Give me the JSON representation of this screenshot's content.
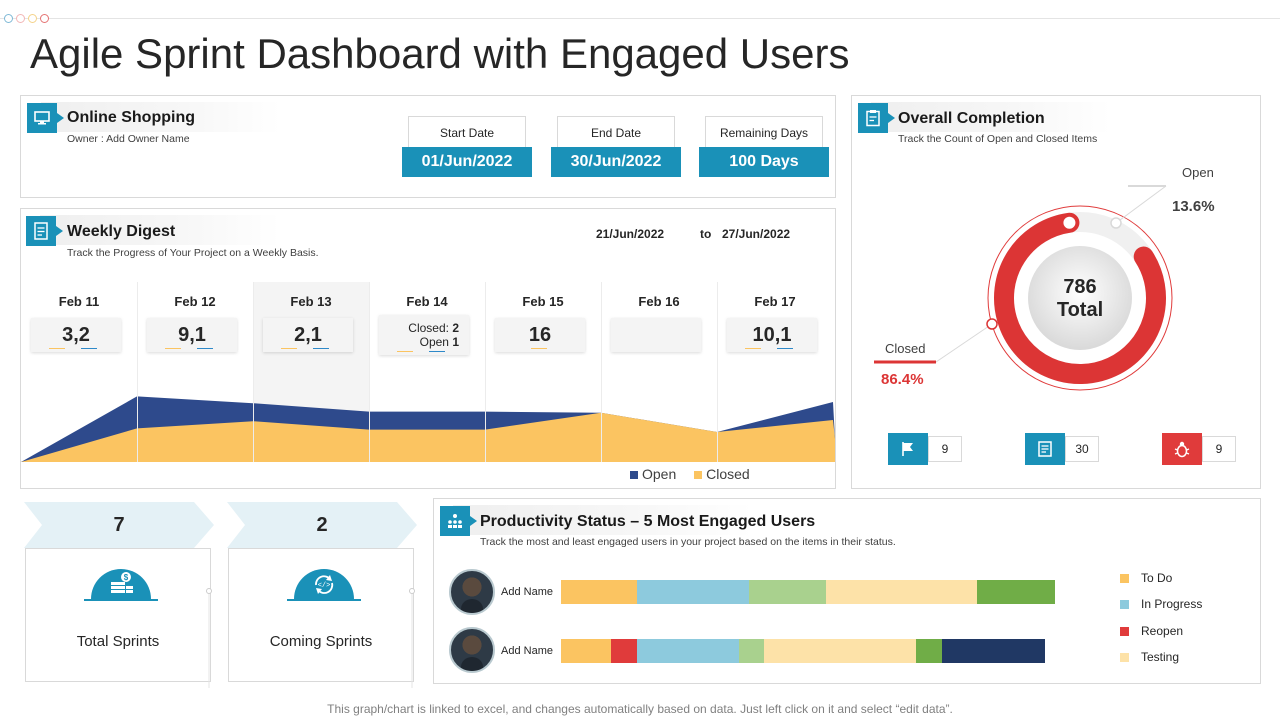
{
  "page": {
    "title": "Agile Sprint Dashboard with Engaged Users",
    "footer": "This graph/chart is linked to excel, and changes automatically based on data. Just left click on it and select “edit data”."
  },
  "project": {
    "title": "Online Shopping",
    "owner": "Owner : Add Owner Name",
    "dates": [
      {
        "label": "Start Date",
        "value": "01/Jun/2022"
      },
      {
        "label": "End Date",
        "value": "30/Jun/2022"
      },
      {
        "label": "Remaining Days",
        "value": "100 Days"
      }
    ]
  },
  "weekly": {
    "title": "Weekly Digest",
    "subtitle": "Track the Progress of Your Project on a Weekly Basis.",
    "range_from": "21/Jun/2022",
    "range_to_word": "to",
    "range_to": "27/Jun/2022",
    "days": [
      {
        "name": "Feb 11",
        "value": "3,2"
      },
      {
        "name": "Feb 12",
        "value": "9,1"
      },
      {
        "name": "Feb 13",
        "value": "2,1"
      },
      {
        "name": "Feb 14",
        "closed_label": "Closed:",
        "closed": "2",
        "open_label": "Open",
        "open": "1"
      },
      {
        "name": "Feb 15",
        "value": "16"
      },
      {
        "name": "Feb 16",
        "value": ""
      },
      {
        "name": "Feb 17",
        "value": "10,1"
      }
    ],
    "legend": {
      "open": "Open",
      "closed": "Closed"
    },
    "colors": {
      "open": "#2e4a8c",
      "closed": "#fbc461"
    }
  },
  "chart_data": {
    "type": "area",
    "categories": [
      "Feb 11",
      "Feb 12",
      "Feb 13",
      "Feb 14",
      "Feb 15",
      "Feb 16",
      "Feb 17"
    ],
    "series": [
      {
        "name": "Closed",
        "values": [
          3,
          9,
          2,
          2,
          16,
          0,
          10
        ]
      },
      {
        "name": "Open",
        "values": [
          2,
          1,
          1,
          1,
          0,
          0,
          1
        ]
      }
    ],
    "stacked": true,
    "legend": "bottom-right"
  },
  "completion": {
    "title": "Overall Completion",
    "subtitle": "Track the Count of Open and Closed Items",
    "total": "786",
    "total_label": "Total",
    "open_label": "Open",
    "open_pct": "13.6%",
    "open_fraction": 0.136,
    "closed_label": "Closed",
    "closed_pct": "86.4%",
    "stats": [
      {
        "icon": "flag-icon",
        "value": "9",
        "color": "#1a91b8"
      },
      {
        "icon": "checklist-icon",
        "value": "30",
        "color": "#1a91b8"
      },
      {
        "icon": "bug-icon",
        "value": "9",
        "color": "#e03b3b"
      }
    ]
  },
  "sprints": [
    {
      "count": "7",
      "label": "Total Sprints",
      "icon": "coins-icon"
    },
    {
      "count": "2",
      "label": "Coming Sprints",
      "icon": "code-cycle-icon"
    }
  ],
  "productivity": {
    "title": "Productivity Status – 5 Most Engaged Users",
    "subtitle": "Track the most and least engaged users in your project based on the items in their status.",
    "users": [
      {
        "name": "Add Name",
        "segments": [
          {
            "color": "#fbc461",
            "share": 0.155
          },
          {
            "color": "#8dcadd",
            "share": 0.229
          },
          {
            "color": "#a9d18e",
            "share": 0.157
          },
          {
            "color": "#fde2a8",
            "share": 0.31
          },
          {
            "color": "#70ad47",
            "share": 0.159
          }
        ]
      },
      {
        "name": "Add Name",
        "segments": [
          {
            "color": "#fbc461",
            "share": 0.104
          },
          {
            "color": "#e03b3b",
            "share": 0.054
          },
          {
            "color": "#8dcadd",
            "share": 0.21
          },
          {
            "color": "#a9d18e",
            "share": 0.052
          },
          {
            "color": "#fde2a8",
            "share": 0.314
          },
          {
            "color": "#70ad47",
            "share": 0.054
          },
          {
            "color": "#203864",
            "share": 0.212
          }
        ]
      }
    ],
    "legend": [
      {
        "label": "To Do",
        "color": "#fbc461"
      },
      {
        "label": "In Progress",
        "color": "#8dcadd"
      },
      {
        "label": "Reopen",
        "color": "#e03b3b"
      },
      {
        "label": "Testing",
        "color": "#fde2a8"
      }
    ]
  }
}
